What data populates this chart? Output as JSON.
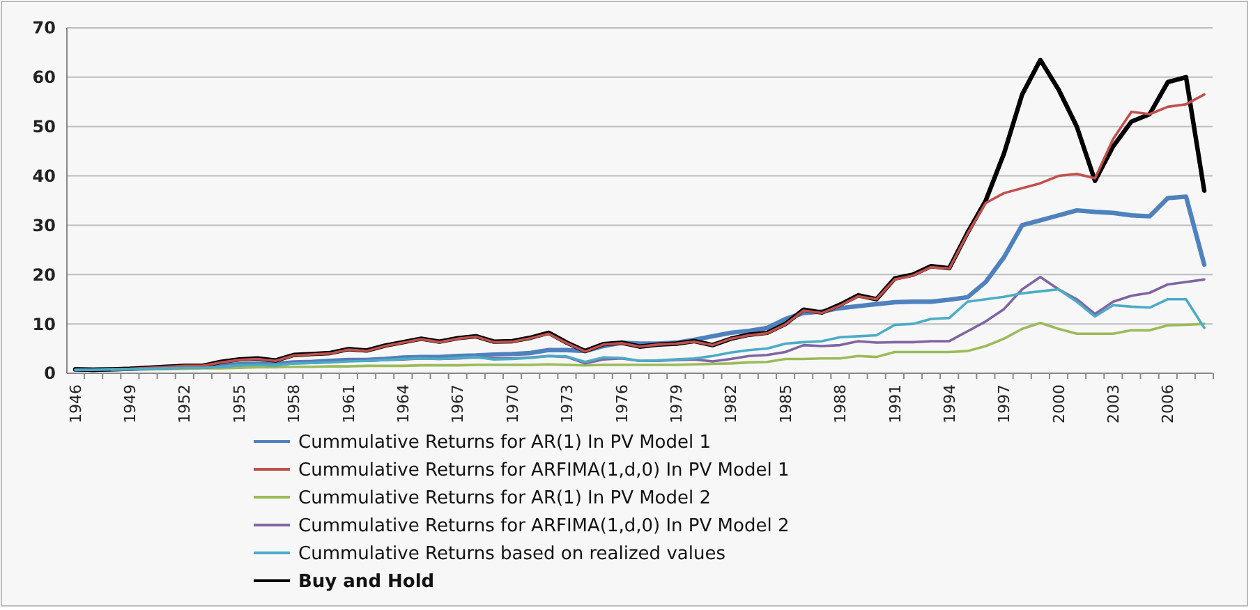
{
  "chart_data": {
    "type": "line",
    "categories": [
      "1946",
      null,
      null,
      "1949",
      null,
      null,
      "1952",
      null,
      null,
      "1955",
      null,
      null,
      "1958",
      null,
      null,
      "1961",
      null,
      null,
      "1964",
      null,
      null,
      "1967",
      null,
      null,
      "1970",
      null,
      null,
      "1973",
      null,
      null,
      "1976",
      null,
      null,
      "1979",
      null,
      null,
      "1982",
      null,
      null,
      "1985",
      null,
      null,
      "1988",
      null,
      null,
      "1991",
      null,
      null,
      "1994",
      null,
      null,
      "1997",
      null,
      null,
      "2000",
      null,
      null,
      "2003",
      null,
      null,
      "2006",
      null,
      null
    ],
    "ylim": [
      0,
      70
    ],
    "yticks": [
      0,
      10,
      20,
      30,
      40,
      50,
      60,
      70
    ],
    "grid": "y",
    "legend": "bottom",
    "marker": "none",
    "line_style": "solid",
    "series": [
      {
        "name": "Cummulative Returns for AR(1) In PV Model 1",
        "color": "#4f81bd",
        "values": [
          0.8,
          0.7,
          0.8,
          0.9,
          1.0,
          1.1,
          1.2,
          1.3,
          1.5,
          1.8,
          1.9,
          1.9,
          2.2,
          2.3,
          2.5,
          2.7,
          2.7,
          2.9,
          3.2,
          3.3,
          3.3,
          3.5,
          3.6,
          3.8,
          3.9,
          4.1,
          4.7,
          4.7,
          4.5,
          5.5,
          6.2,
          6.0,
          6.0,
          6.2,
          6.8,
          7.5,
          8.2,
          8.6,
          9.2,
          11.0,
          12.2,
          12.5,
          13.2,
          13.6,
          14.0,
          14.4,
          14.5,
          14.5,
          14.9,
          15.4,
          18.5,
          23.5,
          30,
          31,
          32,
          33,
          32.7,
          32.5,
          32,
          31.8,
          35.5,
          35.8,
          22
        ]
      },
      {
        "name": "Cummulative Returns for ARFIMA(1,d,0) In PV Model 1",
        "color": "#c0504d",
        "values": [
          null,
          null,
          0.8,
          0.9,
          1.1,
          1.3,
          1.5,
          1.5,
          2.2,
          2.7,
          2.9,
          2.5,
          3.6,
          3.8,
          4.0,
          4.8,
          4.5,
          5.5,
          6.2,
          6.9,
          6.3,
          7.0,
          7.4,
          6.3,
          6.4,
          7.1,
          8.0,
          6.1,
          4.4,
          5.8,
          6.1,
          5.4,
          5.8,
          6.0,
          6.4,
          5.7,
          7.0,
          7.7,
          8.1,
          9.9,
          12.7,
          12.2,
          13.7,
          15.6,
          15.0,
          19.0,
          19.8,
          21.5,
          21.2,
          28.3,
          34.5,
          36.5,
          37.5,
          38.5,
          40,
          40.4,
          39.5,
          47.5,
          53,
          52.5,
          54,
          54.5,
          56.5
        ]
      },
      {
        "name": "Cummulative Returns for AR(1) In PV Model 2",
        "color": "#9bbb59",
        "values": [
          null,
          null,
          0.7,
          0.8,
          0.8,
          0.9,
          0.9,
          1.0,
          1.0,
          1.1,
          1.2,
          1.2,
          1.3,
          1.3,
          1.4,
          1.4,
          1.5,
          1.5,
          1.5,
          1.6,
          1.6,
          1.6,
          1.7,
          1.7,
          1.7,
          1.7,
          1.8,
          1.7,
          1.6,
          1.7,
          1.7,
          1.7,
          1.7,
          1.7,
          1.8,
          1.9,
          2.0,
          2.2,
          2.3,
          2.9,
          2.9,
          3.0,
          3.0,
          3.5,
          3.3,
          4.3,
          4.3,
          4.3,
          4.3,
          4.5,
          5.5,
          7,
          9,
          10.2,
          9,
          8,
          8,
          8,
          8.7,
          8.7,
          9.7,
          9.8,
          10
        ]
      },
      {
        "name": "Cummulative Returns for ARFIMA(1,d,0) In PV Model 2",
        "color": "#8064a2",
        "values": [
          0.7,
          0.7,
          0.8,
          0.8,
          0.9,
          1.0,
          1.1,
          1.1,
          1.3,
          1.6,
          1.7,
          1.6,
          2.1,
          2.2,
          2.3,
          2.5,
          2.5,
          2.7,
          2.8,
          3.0,
          2.9,
          3.0,
          3.2,
          3.0,
          3.0,
          3.2,
          3.5,
          3.3,
          2.0,
          2.8,
          3.0,
          2.5,
          2.5,
          2.7,
          2.8,
          2.4,
          2.9,
          3.5,
          3.7,
          4.3,
          5.7,
          5.5,
          5.7,
          6.5,
          6.2,
          6.3,
          6.3,
          6.5,
          6.5,
          8.5,
          10.5,
          13,
          17,
          19.5,
          17,
          15,
          12,
          14.5,
          15.7,
          16.3,
          18,
          18.5,
          19
        ]
      },
      {
        "name": "Cummulative Returns based on realized values",
        "color": "#4bacc6",
        "values": [
          0.7,
          0.7,
          0.8,
          0.8,
          0.9,
          1.0,
          1.1,
          1.1,
          1.3,
          1.6,
          1.7,
          1.6,
          2.0,
          2.1,
          2.2,
          2.4,
          2.5,
          2.7,
          2.9,
          3.0,
          2.9,
          3.1,
          3.3,
          2.8,
          2.9,
          3.1,
          3.5,
          3.4,
          2.3,
          3.2,
          3.1,
          2.5,
          2.6,
          2.8,
          3.0,
          3.5,
          4.2,
          4.7,
          5.0,
          6.0,
          6.3,
          6.5,
          7.3,
          7.5,
          7.7,
          9.8,
          10,
          11,
          11.2,
          14.5,
          15,
          15.5,
          16.2,
          16.6,
          17,
          14.5,
          11.5,
          13.8,
          13.5,
          13.3,
          15,
          15,
          9.2
        ]
      },
      {
        "name": "Buy and Hold",
        "color": "#000000",
        "values": [
          0.8,
          0.7,
          0.8,
          0.9,
          1.1,
          1.3,
          1.5,
          1.5,
          2.3,
          2.8,
          3.0,
          2.6,
          3.7,
          3.9,
          4.1,
          4.9,
          4.6,
          5.6,
          6.3,
          7.0,
          6.4,
          7.1,
          7.5,
          6.4,
          6.5,
          7.2,
          8.2,
          6.2,
          4.5,
          5.9,
          6.2,
          5.4,
          5.8,
          6.0,
          6.5,
          5.7,
          7.0,
          7.8,
          8.2,
          10.0,
          12.9,
          12.3,
          13.9,
          15.8,
          15.0,
          19.2,
          20.0,
          21.7,
          21.3,
          28.5,
          35,
          44.5,
          56.5,
          63.5,
          57.5,
          50,
          39,
          46,
          51,
          52.5,
          59,
          60,
          37
        ]
      }
    ]
  }
}
